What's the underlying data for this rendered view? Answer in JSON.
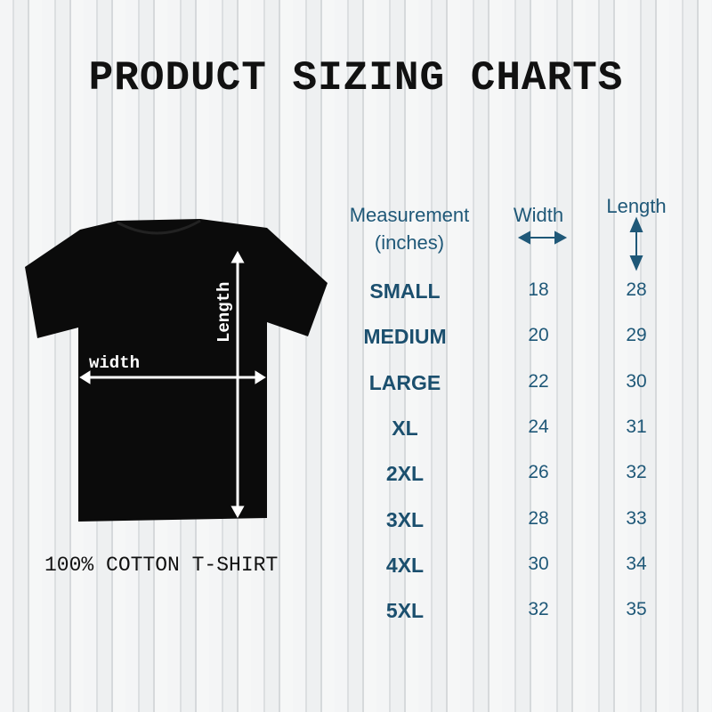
{
  "title": "PRODUCT SIZING CHARTS",
  "shirt": {
    "width_label": "width",
    "length_label": "Length",
    "caption": "100% COTTON T-SHIRT"
  },
  "table": {
    "headers": {
      "measurement": "Measurement",
      "unit": "(inches)",
      "width": "Width",
      "length": "Length"
    },
    "rows": [
      {
        "size": "SMALL",
        "width": "18",
        "length": "28"
      },
      {
        "size": "MEDIUM",
        "width": "20",
        "length": "29"
      },
      {
        "size": "LARGE",
        "width": "22",
        "length": "30"
      },
      {
        "size": "XL",
        "width": "24",
        "length": "31"
      },
      {
        "size": "2XL",
        "width": "26",
        "length": "32"
      },
      {
        "size": "3XL",
        "width": "28",
        "length": "33"
      },
      {
        "size": "4XL",
        "width": "30",
        "length": "34"
      },
      {
        "size": "5XL",
        "width": "32",
        "length": "35"
      }
    ]
  },
  "colors": {
    "text_accent": "#1f5878",
    "shirt": "#0b0b0b"
  }
}
